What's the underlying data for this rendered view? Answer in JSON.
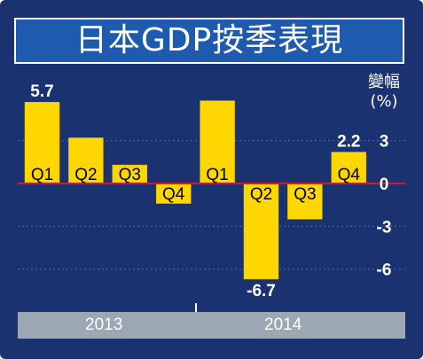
{
  "title": "日本GDP按季表現",
  "unit_label": "變幅",
  "unit_paren": "(%)",
  "colors": {
    "background": "#1a3270",
    "title_band": "#1e5aae",
    "bar": "#ffd700",
    "zero_line": "#d6182a",
    "year_band": "#9ba7b2",
    "grid": "#4a6cb0"
  },
  "chart_data": {
    "type": "bar",
    "title": "日本GDP按季表現",
    "ylabel": "變幅(%)",
    "xlabel": "",
    "categories": [
      "Q1",
      "Q2",
      "Q3",
      "Q4",
      "Q1",
      "Q2",
      "Q3",
      "Q4"
    ],
    "years": [
      "2013",
      "2014"
    ],
    "values": [
      5.7,
      3.2,
      1.3,
      -1.4,
      5.8,
      -6.7,
      -2.5,
      2.2
    ],
    "data_labels": [
      {
        "index": 0,
        "text": "5.7"
      },
      {
        "index": 5,
        "text": "-6.7"
      },
      {
        "index": 7,
        "text": "2.2"
      }
    ],
    "yticks": [
      "3",
      "0",
      "-3",
      "-6"
    ],
    "ytick_values": [
      3,
      0,
      -3,
      -6
    ],
    "ylim": [
      -7.5,
      6.5
    ],
    "grid": true
  }
}
